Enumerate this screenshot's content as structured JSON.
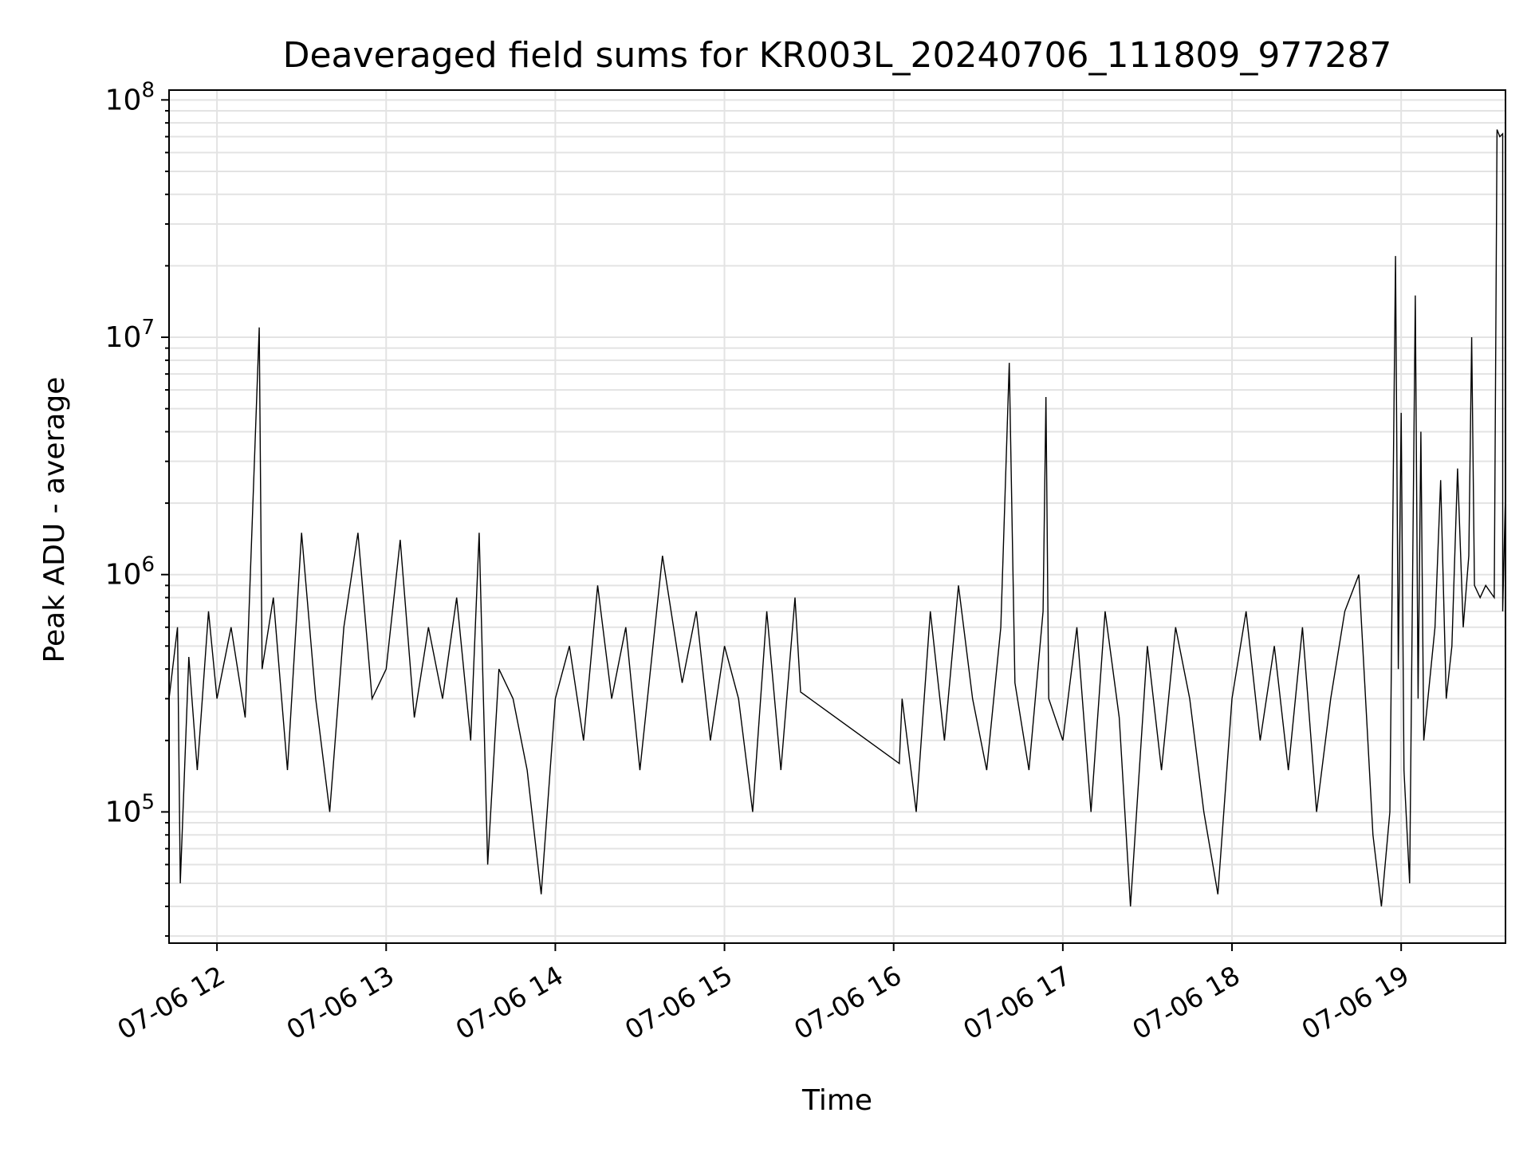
{
  "chart_data": {
    "type": "line",
    "title": "Deaveraged field sums for KR003L_20240706_111809_977287",
    "xlabel": "Time",
    "ylabel": "Peak ADU - average",
    "y_scale": "log",
    "ylim": [
      28000,
      110000000
    ],
    "xlim": [
      "2024-07-06 11:43",
      "2024-07-06 19:37"
    ],
    "grid": true,
    "legend": "none",
    "line_color": "#000000",
    "x_tick_labels": [
      "07-06 12",
      "07-06 13",
      "07-06 14",
      "07-06 15",
      "07-06 16",
      "07-06 17",
      "07-06 18",
      "07-06 19"
    ],
    "x_tick_times": [
      "2024-07-06 12:00",
      "2024-07-06 13:00",
      "2024-07-06 14:00",
      "2024-07-06 15:00",
      "2024-07-06 16:00",
      "2024-07-06 17:00",
      "2024-07-06 18:00",
      "2024-07-06 19:00"
    ],
    "y_tick_labels": [
      {
        "base": "10",
        "exp": "5",
        "value": 100000
      },
      {
        "base": "10",
        "exp": "6",
        "value": 1000000
      },
      {
        "base": "10",
        "exp": "7",
        "value": 10000000
      },
      {
        "base": "10",
        "exp": "8",
        "value": 100000000
      }
    ],
    "series": [
      {
        "points": [
          [
            "2024-07-06 11:43",
            300000
          ],
          [
            "2024-07-06 11:46",
            600000
          ],
          [
            "2024-07-06 11:47",
            50000
          ],
          [
            "2024-07-06 11:50",
            450000
          ],
          [
            "2024-07-06 11:53",
            150000
          ],
          [
            "2024-07-06 11:57",
            700000
          ],
          [
            "2024-07-06 12:00",
            300000
          ],
          [
            "2024-07-06 12:05",
            600000
          ],
          [
            "2024-07-06 12:10",
            250000
          ],
          [
            "2024-07-06 12:15",
            11000000
          ],
          [
            "2024-07-06 12:16",
            400000
          ],
          [
            "2024-07-06 12:20",
            800000
          ],
          [
            "2024-07-06 12:25",
            150000
          ],
          [
            "2024-07-06 12:30",
            1500000
          ],
          [
            "2024-07-06 12:35",
            300000
          ],
          [
            "2024-07-06 12:40",
            100000
          ],
          [
            "2024-07-06 12:45",
            600000
          ],
          [
            "2024-07-06 12:50",
            1500000
          ],
          [
            "2024-07-06 12:55",
            300000
          ],
          [
            "2024-07-06 13:00",
            400000
          ],
          [
            "2024-07-06 13:05",
            1400000
          ],
          [
            "2024-07-06 13:10",
            250000
          ],
          [
            "2024-07-06 13:15",
            600000
          ],
          [
            "2024-07-06 13:20",
            300000
          ],
          [
            "2024-07-06 13:25",
            800000
          ],
          [
            "2024-07-06 13:30",
            200000
          ],
          [
            "2024-07-06 13:33",
            1500000
          ],
          [
            "2024-07-06 13:36",
            60000
          ],
          [
            "2024-07-06 13:40",
            400000
          ],
          [
            "2024-07-06 13:45",
            300000
          ],
          [
            "2024-07-06 13:50",
            150000
          ],
          [
            "2024-07-06 13:55",
            45000
          ],
          [
            "2024-07-06 14:00",
            300000
          ],
          [
            "2024-07-06 14:05",
            500000
          ],
          [
            "2024-07-06 14:10",
            200000
          ],
          [
            "2024-07-06 14:15",
            900000
          ],
          [
            "2024-07-06 14:20",
            300000
          ],
          [
            "2024-07-06 14:25",
            600000
          ],
          [
            "2024-07-06 14:30",
            150000
          ],
          [
            "2024-07-06 14:38",
            1200000
          ],
          [
            "2024-07-06 14:45",
            350000
          ],
          [
            "2024-07-06 14:50",
            700000
          ],
          [
            "2024-07-06 14:55",
            200000
          ],
          [
            "2024-07-06 15:00",
            500000
          ],
          [
            "2024-07-06 15:05",
            300000
          ],
          [
            "2024-07-06 15:10",
            100000
          ],
          [
            "2024-07-06 15:15",
            700000
          ],
          [
            "2024-07-06 15:20",
            150000
          ],
          [
            "2024-07-06 15:25",
            800000
          ],
          [
            "2024-07-06 15:27",
            320000
          ],
          [
            "2024-07-06 16:02",
            160000
          ],
          [
            "2024-07-06 16:03",
            300000
          ],
          [
            "2024-07-06 16:08",
            100000
          ],
          [
            "2024-07-06 16:13",
            700000
          ],
          [
            "2024-07-06 16:18",
            200000
          ],
          [
            "2024-07-06 16:23",
            900000
          ],
          [
            "2024-07-06 16:28",
            300000
          ],
          [
            "2024-07-06 16:33",
            150000
          ],
          [
            "2024-07-06 16:38",
            600000
          ],
          [
            "2024-07-06 16:41",
            7800000
          ],
          [
            "2024-07-06 16:43",
            350000
          ],
          [
            "2024-07-06 16:48",
            150000
          ],
          [
            "2024-07-06 16:53",
            700000
          ],
          [
            "2024-07-06 16:54",
            5600000
          ],
          [
            "2024-07-06 16:55",
            300000
          ],
          [
            "2024-07-06 17:00",
            200000
          ],
          [
            "2024-07-06 17:05",
            600000
          ],
          [
            "2024-07-06 17:10",
            100000
          ],
          [
            "2024-07-06 17:15",
            700000
          ],
          [
            "2024-07-06 17:20",
            250000
          ],
          [
            "2024-07-06 17:24",
            40000
          ],
          [
            "2024-07-06 17:30",
            500000
          ],
          [
            "2024-07-06 17:35",
            150000
          ],
          [
            "2024-07-06 17:40",
            600000
          ],
          [
            "2024-07-06 17:45",
            300000
          ],
          [
            "2024-07-06 17:50",
            100000
          ],
          [
            "2024-07-06 17:55",
            45000
          ],
          [
            "2024-07-06 18:00",
            300000
          ],
          [
            "2024-07-06 18:05",
            700000
          ],
          [
            "2024-07-06 18:10",
            200000
          ],
          [
            "2024-07-06 18:15",
            500000
          ],
          [
            "2024-07-06 18:20",
            150000
          ],
          [
            "2024-07-06 18:25",
            600000
          ],
          [
            "2024-07-06 18:30",
            100000
          ],
          [
            "2024-07-06 18:35",
            300000
          ],
          [
            "2024-07-06 18:40",
            700000
          ],
          [
            "2024-07-06 18:45",
            1000000
          ],
          [
            "2024-07-06 18:50",
            80000
          ],
          [
            "2024-07-06 18:53",
            40000
          ],
          [
            "2024-07-06 18:56",
            100000
          ],
          [
            "2024-07-06 18:58",
            22000000
          ],
          [
            "2024-07-06 18:59",
            400000
          ],
          [
            "2024-07-06 19:00",
            4800000
          ],
          [
            "2024-07-06 19:01",
            150000
          ],
          [
            "2024-07-06 19:03",
            50000
          ],
          [
            "2024-07-06 19:05",
            15000000
          ],
          [
            "2024-07-06 19:06",
            300000
          ],
          [
            "2024-07-06 19:07",
            4000000
          ],
          [
            "2024-07-06 19:08",
            200000
          ],
          [
            "2024-07-06 19:12",
            600000
          ],
          [
            "2024-07-06 19:14",
            2500000
          ],
          [
            "2024-07-06 19:16",
            300000
          ],
          [
            "2024-07-06 19:18",
            500000
          ],
          [
            "2024-07-06 19:20",
            2800000
          ],
          [
            "2024-07-06 19:22",
            600000
          ],
          [
            "2024-07-06 19:24",
            1200000
          ],
          [
            "2024-07-06 19:25",
            10000000
          ],
          [
            "2024-07-06 19:26",
            900000
          ],
          [
            "2024-07-06 19:28",
            800000
          ],
          [
            "2024-07-06 19:30",
            900000
          ],
          [
            "2024-07-06 19:33",
            800000
          ],
          [
            "2024-07-06 19:34",
            75000000
          ],
          [
            "2024-07-06 19:35",
            70000000
          ],
          [
            "2024-07-06 19:36",
            72000000
          ],
          [
            "2024-07-06 19:36",
            700000
          ],
          [
            "2024-07-06 19:37",
            2200000
          ]
        ]
      }
    ]
  }
}
